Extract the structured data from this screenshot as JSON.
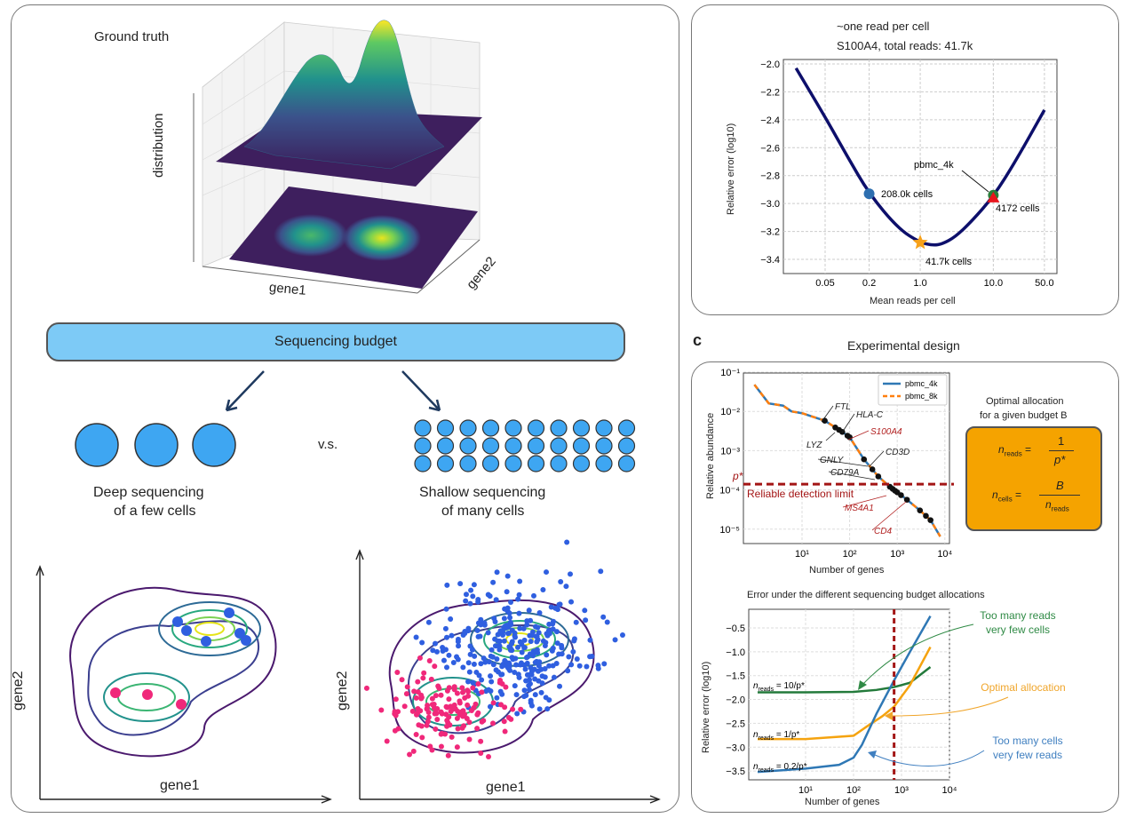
{
  "left_panel": {
    "ground_truth_title": "Ground truth",
    "axis_distribution": "distribution",
    "axis_gene1": "gene1",
    "axis_gene2": "gene2",
    "budget_label": "Sequencing budget",
    "vs_label": "v.s.",
    "deep_label_1": "Deep sequencing",
    "deep_label_2": "of a few cells",
    "shallow_label_1": "Shallow sequencing",
    "shallow_label_2": "of many cells",
    "contour_left": {
      "xlabel": "gene1",
      "ylabel": "gene2"
    },
    "contour_right": {
      "xlabel": "gene1",
      "ylabel": "gene2"
    },
    "colors": {
      "budget_fill": "#7dcaf6",
      "cell_fill": "#3ea6f2",
      "blue_points": "#2f5fe0",
      "pink_points": "#f0287a",
      "arrow": "#1f3a5f"
    }
  },
  "panel_c": {
    "letter": "c",
    "title": "Experimental design",
    "optimal_title_1": "Optimal allocation",
    "optimal_title_2": "for a given budget B",
    "formula": {
      "n": "n",
      "reads_sub": "reads",
      "cells_sub": "cells",
      "eq": "=",
      "one": "1",
      "pstar": "p*",
      "B": "B"
    },
    "formula_fill": "#f5a300"
  },
  "chart_data": [
    {
      "type": "line",
      "title": "~one read per cell",
      "subtitle": "S100A4, total reads: 41.7k",
      "xlabel": "Mean reads per cell",
      "ylabel": "Relative error (log10)",
      "xscale": "log",
      "xticks": [
        "0.05",
        "0.2",
        "1.0",
        "10.0",
        "50.0"
      ],
      "yticks": [
        "−2.0",
        "−2.2",
        "−2.4",
        "−2.6",
        "−2.8",
        "−3.0",
        "−3.2",
        "−3.4"
      ],
      "ylim": [
        -3.52,
        -1.97
      ],
      "grid": true,
      "line_color": "#0d0f6b",
      "x": [
        0.02,
        0.05,
        0.1,
        0.2,
        0.5,
        1,
        1.5,
        2,
        3,
        5,
        10,
        20,
        50
      ],
      "y": [
        -2.03,
        -2.38,
        -2.66,
        -2.93,
        -3.18,
        -3.28,
        -3.3,
        -3.29,
        -3.24,
        -3.13,
        -2.95,
        -2.7,
        -2.33
      ],
      "markers": [
        {
          "x": 0.2,
          "y": -2.93,
          "shape": "circle",
          "color": "#2e6fb0",
          "label": "208.0k cells"
        },
        {
          "x": 1.0,
          "y": -3.28,
          "shape": "star",
          "color": "#f7a11a",
          "label": "41.7k cells"
        },
        {
          "x": 10,
          "y": -2.94,
          "shape": "circle",
          "color": "#2a7d3a",
          "label": "pbmc_4k"
        },
        {
          "x": 10,
          "y": -2.96,
          "shape": "triangle",
          "color": "#e8151c",
          "label": "4172 cells"
        }
      ]
    },
    {
      "type": "line",
      "xlabel": "Number of genes",
      "ylabel": "Relative abundance",
      "xscale": "log",
      "yscale": "log",
      "xticks": [
        "10¹",
        "10²",
        "10³",
        "10⁴"
      ],
      "yticks": [
        "10⁻¹",
        "10⁻²",
        "10⁻³",
        "10⁻⁴",
        "10⁻⁵"
      ],
      "grid": true,
      "legend": "top-right",
      "series": [
        {
          "name": "pbmc_4k",
          "color": "#2f78b5",
          "style": "solid"
        },
        {
          "name": "pbmc_8k",
          "color": "#ff7f0e",
          "style": "dashed"
        }
      ],
      "x": [
        1,
        2,
        4,
        6,
        10,
        30,
        70,
        100,
        200,
        400,
        700,
        1500,
        3000,
        5000,
        8000
      ],
      "y": [
        0.048,
        0.016,
        0.014,
        0.01,
        0.009,
        0.0058,
        0.003,
        0.0022,
        0.0006,
        0.00022,
        0.00012,
        6e-05,
        3e-05,
        1.7e-05,
        6.5e-06
      ],
      "detection_limit": {
        "y": 0.00014,
        "label": "Reliable detection limit",
        "symbol": "p*",
        "color": "#a31515"
      },
      "gene_labels": [
        {
          "name": "FTL",
          "x": 30,
          "y": 0.0058,
          "color": "#222"
        },
        {
          "name": "HLA-C",
          "x": 70,
          "y": 0.003,
          "color": "#222"
        },
        {
          "name": "S100A4",
          "x": 100,
          "y": 0.0022,
          "color": "#b22222"
        },
        {
          "name": "LYZ",
          "x": 55,
          "y": 0.0035,
          "color": "#222"
        },
        {
          "name": "GNLY",
          "x": 250,
          "y": 0.0004,
          "color": "#222"
        },
        {
          "name": "CD3D",
          "x": 280,
          "y": 0.00035,
          "color": "#222"
        },
        {
          "name": "CD79A",
          "x": 400,
          "y": 0.00022,
          "color": "#222"
        },
        {
          "name": "MS4A1",
          "x": 700,
          "y": 0.00012,
          "color": "#b22222"
        },
        {
          "name": "CD4",
          "x": 1500,
          "y": 6e-05,
          "color": "#b22222"
        }
      ]
    },
    {
      "type": "line",
      "title": "Error under the different sequencing budget allocations",
      "xlabel": "Number of genes",
      "ylabel": "Relative error (log10)",
      "xscale": "log",
      "xticks": [
        "10¹",
        "10²",
        "10³",
        "10⁴"
      ],
      "yticks": [
        "−0.5",
        "−1.0",
        "−1.5",
        "−2.0",
        "−2.5",
        "−3.0",
        "−3.5"
      ],
      "ylim": [
        -3.69,
        -0.11
      ],
      "grid": true,
      "vline": {
        "x": 700,
        "color": "#a31515"
      },
      "series": [
        {
          "name": "n_reads = 10/p*",
          "color": "#237a3b",
          "x": [
            1,
            10,
            100,
            300,
            700,
            1500,
            4000
          ],
          "y": [
            -1.85,
            -1.85,
            -1.84,
            -1.8,
            -1.74,
            -1.65,
            -1.32
          ]
        },
        {
          "name": "n_reads = 1/p*",
          "color": "#f5a30f",
          "x": [
            1,
            10,
            100,
            200,
            400,
            700,
            1500,
            4000
          ],
          "y": [
            -2.83,
            -2.83,
            -2.76,
            -2.55,
            -2.35,
            -2.15,
            -1.7,
            -0.9
          ]
        },
        {
          "name": "n_reads = 0.2/p*",
          "color": "#2f78b5",
          "x": [
            1,
            10,
            50,
            100,
            150,
            300,
            700,
            1500,
            4000
          ],
          "y": [
            -3.52,
            -3.45,
            -3.37,
            -3.22,
            -2.95,
            -2.3,
            -1.6,
            -1.0,
            -0.25
          ]
        }
      ],
      "series_labels": [
        {
          "pre": "n",
          "sub": "reads",
          "post": " = 10/p*"
        },
        {
          "pre": "n",
          "sub": "reads",
          "post": " = 1/p*"
        },
        {
          "pre": "n",
          "sub": "reads",
          "post": " = 0.2/p*"
        }
      ],
      "annotations": [
        {
          "line1": "Too many reads",
          "line2": "very few cells",
          "color": "#2f8a45"
        },
        {
          "line1": "Optimal allocation",
          "line2": "",
          "color": "#f0a52a"
        },
        {
          "line1": "Too many cells",
          "line2": "very few reads",
          "color": "#3f7fc0"
        }
      ]
    }
  ]
}
